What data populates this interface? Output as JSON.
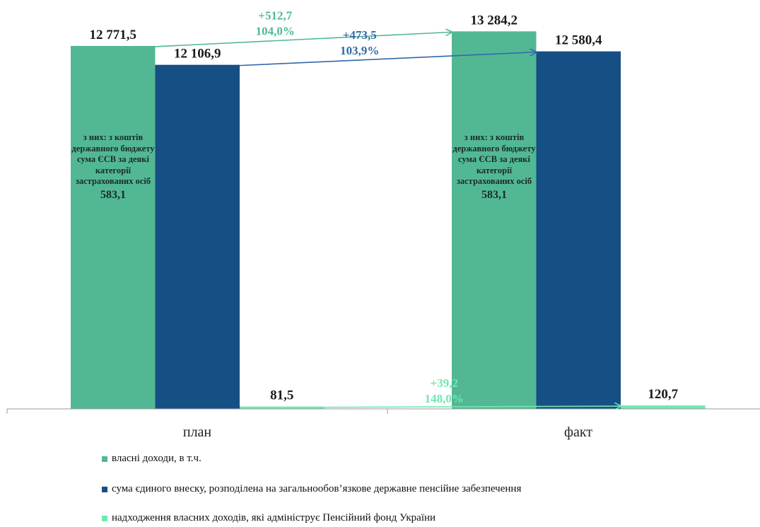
{
  "chart_data": {
    "type": "bar",
    "categories": [
      "план",
      "факт"
    ],
    "series": [
      {
        "name": "власні доходи, в т.ч.",
        "color": "#52b894",
        "values": [
          12771.5,
          13284.2
        ],
        "labels": [
          "12 771,5",
          "13 284,2"
        ]
      },
      {
        "name": "сума єдиного внеску, розподілена на загальнообов’язкове державне пенсійне забезпечення",
        "color": "#154f84",
        "values": [
          12106.9,
          12580.4
        ],
        "labels": [
          "12 106,9",
          "12 580,4"
        ]
      },
      {
        "name": "надходження власних доходів, які адмініструє  Пенсійний  фонд України",
        "color": "#70e8b0",
        "values": [
          81.5,
          120.7
        ],
        "labels": [
          "81,5",
          "120,7"
        ]
      }
    ],
    "ylim": [
      0,
      13500
    ],
    "legend_position": "bottom-left",
    "annotations": {
      "inner_note": {
        "text": "з них: з коштів державного бюджету сума ЄСВ за деякі категорії застрахованих осіб",
        "value": "583,1"
      },
      "growth": [
        {
          "delta": "+512,7",
          "percent": "104,0%",
          "color": "#52b894"
        },
        {
          "delta": "+473,5",
          "percent": "103,9%",
          "color": "#2f6aa6"
        },
        {
          "delta": "+39,2",
          "percent": "148,0%",
          "color": "#70e8b0"
        }
      ]
    }
  }
}
